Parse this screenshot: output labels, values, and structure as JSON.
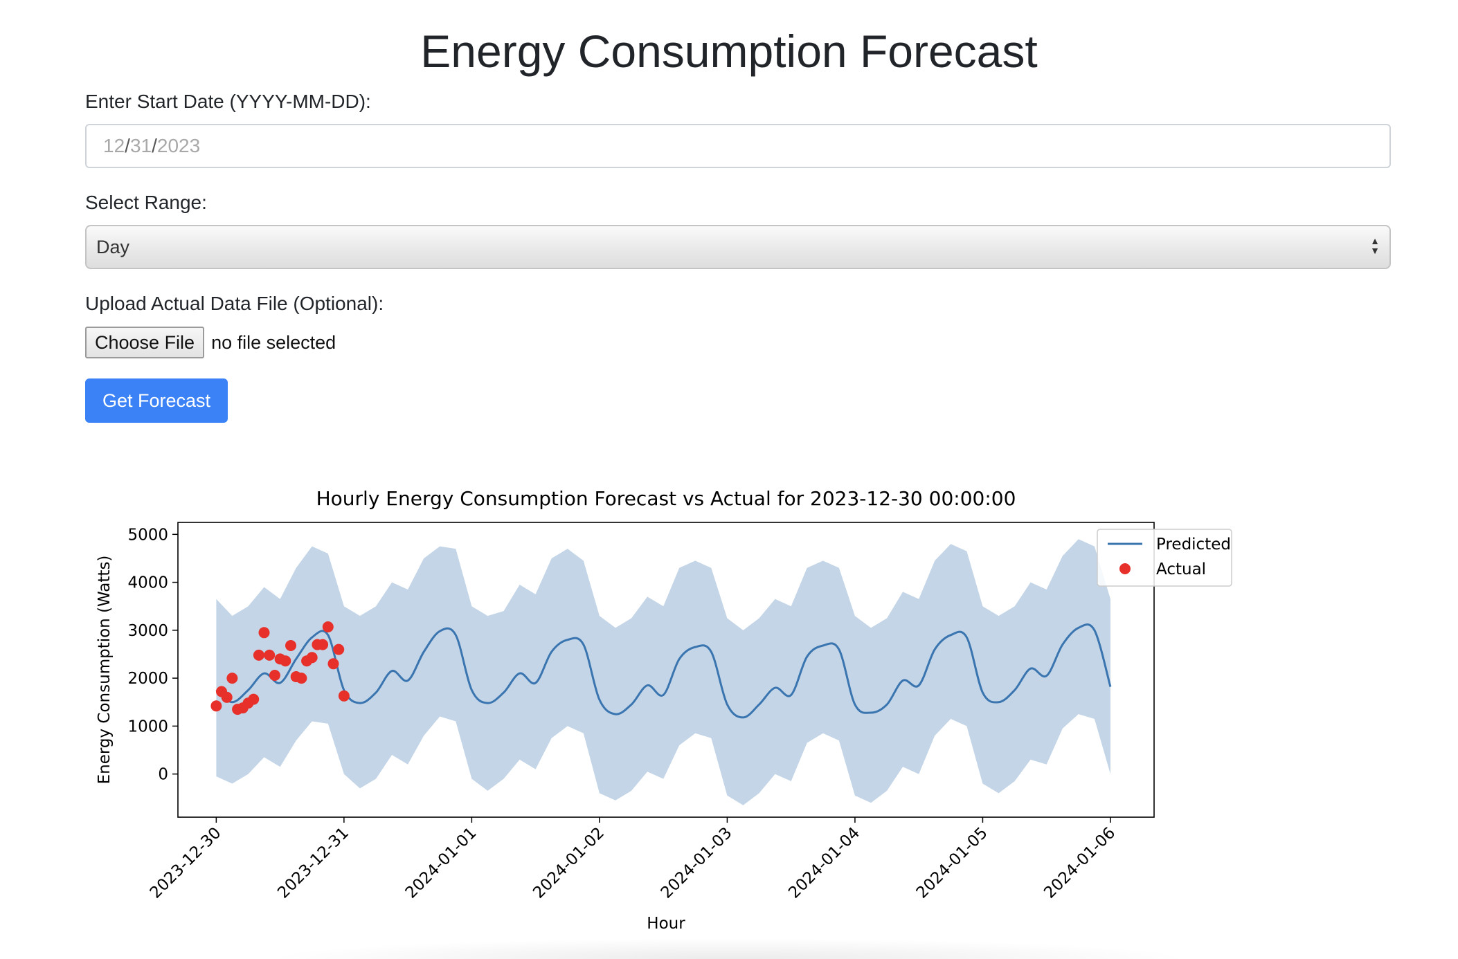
{
  "page": {
    "title": "Energy Consumption Forecast"
  },
  "form": {
    "start_date": {
      "label": "Enter Start Date (YYYY-MM-DD):",
      "month": "12",
      "day": "31",
      "year": "2023",
      "separator": "/"
    },
    "range": {
      "label": "Select Range:",
      "value": "Day"
    },
    "upload": {
      "label": "Upload Actual Data File (Optional):",
      "button_label": "Choose File",
      "status": "no file selected"
    },
    "submit_label": "Get Forecast",
    "colors": {
      "primary": "#3b82f6"
    }
  },
  "chart_data": {
    "type": "line",
    "title": "Hourly Energy Consumption Forecast vs Actual for 2023-12-30 00:00:00",
    "xlabel": "Hour",
    "ylabel": "Energy Consumption (Watts)",
    "ylim": [
      -900,
      5250
    ],
    "yticks": [
      0,
      1000,
      2000,
      3000,
      4000,
      5000
    ],
    "xlim": [
      "2023-12-29 16:48",
      "2024-01-06 08:12"
    ],
    "xticks": [
      "2023-12-30",
      "2023-12-31",
      "2024-01-01",
      "2024-01-02",
      "2024-01-03",
      "2024-01-04",
      "2024-01-05",
      "2024-01-06"
    ],
    "grid": false,
    "legend_position": "top-right",
    "colors": {
      "predicted": "#3a75b0",
      "band": "#c3d5e7",
      "actual": "#e8302a"
    },
    "series": [
      {
        "name": "Predicted",
        "kind": "line",
        "x": [
          "2023-12-30 00:00",
          "2023-12-30 03:00",
          "2023-12-30 06:00",
          "2023-12-30 09:00",
          "2023-12-30 12:00",
          "2023-12-30 15:00",
          "2023-12-30 18:00",
          "2023-12-30 21:00",
          "2023-12-31 00:00",
          "2023-12-31 03:00",
          "2023-12-31 06:00",
          "2023-12-31 09:00",
          "2023-12-31 12:00",
          "2023-12-31 15:00",
          "2023-12-31 18:00",
          "2023-12-31 21:00",
          "2024-01-01 00:00",
          "2024-01-01 03:00",
          "2024-01-01 06:00",
          "2024-01-01 09:00",
          "2024-01-01 12:00",
          "2024-01-01 15:00",
          "2024-01-01 18:00",
          "2024-01-01 21:00",
          "2024-01-02 00:00",
          "2024-01-02 03:00",
          "2024-01-02 06:00",
          "2024-01-02 09:00",
          "2024-01-02 12:00",
          "2024-01-02 15:00",
          "2024-01-02 18:00",
          "2024-01-02 21:00",
          "2024-01-03 00:00",
          "2024-01-03 03:00",
          "2024-01-03 06:00",
          "2024-01-03 09:00",
          "2024-01-03 12:00",
          "2024-01-03 15:00",
          "2024-01-03 18:00",
          "2024-01-03 21:00",
          "2024-01-04 00:00",
          "2024-01-04 03:00",
          "2024-01-04 06:00",
          "2024-01-04 09:00",
          "2024-01-04 12:00",
          "2024-01-04 15:00",
          "2024-01-04 18:00",
          "2024-01-04 21:00",
          "2024-01-05 00:00",
          "2024-01-05 03:00",
          "2024-01-05 06:00",
          "2024-01-05 09:00",
          "2024-01-05 12:00",
          "2024-01-05 15:00",
          "2024-01-05 18:00",
          "2024-01-05 21:00",
          "2024-01-06 00:00"
        ],
        "y": [
          1750,
          1500,
          1750,
          2100,
          1900,
          2400,
          2850,
          2900,
          1750,
          1480,
          1700,
          2150,
          1950,
          2550,
          2980,
          2900,
          1750,
          1480,
          1700,
          2100,
          1900,
          2550,
          2800,
          2700,
          1550,
          1250,
          1450,
          1850,
          1650,
          2400,
          2650,
          2550,
          1450,
          1180,
          1450,
          1800,
          1650,
          2450,
          2680,
          2600,
          1450,
          1280,
          1450,
          1950,
          1850,
          2600,
          2900,
          2850,
          1700,
          1500,
          1750,
          2200,
          2050,
          2700,
          3050,
          3000,
          1820
        ]
      },
      {
        "name": "",
        "kind": "band",
        "x": [
          "2023-12-30 00:00",
          "2023-12-30 03:00",
          "2023-12-30 06:00",
          "2023-12-30 09:00",
          "2023-12-30 12:00",
          "2023-12-30 15:00",
          "2023-12-30 18:00",
          "2023-12-30 21:00",
          "2023-12-31 00:00",
          "2023-12-31 03:00",
          "2023-12-31 06:00",
          "2023-12-31 09:00",
          "2023-12-31 12:00",
          "2023-12-31 15:00",
          "2023-12-31 18:00",
          "2023-12-31 21:00",
          "2024-01-01 00:00",
          "2024-01-01 03:00",
          "2024-01-01 06:00",
          "2024-01-01 09:00",
          "2024-01-01 12:00",
          "2024-01-01 15:00",
          "2024-01-01 18:00",
          "2024-01-01 21:00",
          "2024-01-02 00:00",
          "2024-01-02 03:00",
          "2024-01-02 06:00",
          "2024-01-02 09:00",
          "2024-01-02 12:00",
          "2024-01-02 15:00",
          "2024-01-02 18:00",
          "2024-01-02 21:00",
          "2024-01-03 00:00",
          "2024-01-03 03:00",
          "2024-01-03 06:00",
          "2024-01-03 09:00",
          "2024-01-03 12:00",
          "2024-01-03 15:00",
          "2024-01-03 18:00",
          "2024-01-03 21:00",
          "2024-01-04 00:00",
          "2024-01-04 03:00",
          "2024-01-04 06:00",
          "2024-01-04 09:00",
          "2024-01-04 12:00",
          "2024-01-04 15:00",
          "2024-01-04 18:00",
          "2024-01-04 21:00",
          "2024-01-05 00:00",
          "2024-01-05 03:00",
          "2024-01-05 06:00",
          "2024-01-05 09:00",
          "2024-01-05 12:00",
          "2024-01-05 15:00",
          "2024-01-05 18:00",
          "2024-01-05 21:00",
          "2024-01-06 00:00"
        ],
        "upper": [
          3650,
          3300,
          3500,
          3900,
          3650,
          4300,
          4750,
          4600,
          3500,
          3300,
          3500,
          4000,
          3850,
          4500,
          4750,
          4700,
          3500,
          3300,
          3400,
          3950,
          3750,
          4500,
          4700,
          4450,
          3300,
          3050,
          3250,
          3700,
          3500,
          4300,
          4450,
          4300,
          3250,
          3000,
          3250,
          3650,
          3500,
          4300,
          4450,
          4300,
          3300,
          3050,
          3250,
          3800,
          3650,
          4450,
          4800,
          4650,
          3500,
          3300,
          3500,
          4000,
          3850,
          4550,
          4900,
          4750,
          3650
        ],
        "lower": [
          -50,
          -200,
          0,
          350,
          150,
          700,
          1100,
          1050,
          0,
          -300,
          -100,
          400,
          200,
          800,
          1200,
          1100,
          -100,
          -350,
          -100,
          300,
          100,
          750,
          1000,
          850,
          -400,
          -550,
          -350,
          50,
          -100,
          600,
          850,
          750,
          -450,
          -650,
          -400,
          0,
          -150,
          650,
          850,
          700,
          -450,
          -600,
          -350,
          150,
          0,
          800,
          1150,
          1000,
          -200,
          -400,
          -150,
          300,
          200,
          950,
          1250,
          1150,
          0
        ]
      },
      {
        "name": "Actual",
        "kind": "scatter",
        "x": [
          "2023-12-30 00:00",
          "2023-12-30 01:00",
          "2023-12-30 02:00",
          "2023-12-30 03:00",
          "2023-12-30 04:00",
          "2023-12-30 05:00",
          "2023-12-30 06:00",
          "2023-12-30 07:00",
          "2023-12-30 08:00",
          "2023-12-30 09:00",
          "2023-12-30 10:00",
          "2023-12-30 11:00",
          "2023-12-30 12:00",
          "2023-12-30 13:00",
          "2023-12-30 14:00",
          "2023-12-30 15:00",
          "2023-12-30 16:00",
          "2023-12-30 17:00",
          "2023-12-30 18:00",
          "2023-12-30 19:00",
          "2023-12-30 20:00",
          "2023-12-30 21:00",
          "2023-12-30 22:00",
          "2023-12-30 23:00",
          "2023-12-31 00:00"
        ],
        "y": [
          1420,
          1720,
          1600,
          2000,
          1350,
          1380,
          1480,
          1560,
          2480,
          2950,
          2480,
          2060,
          2400,
          2360,
          2680,
          2030,
          2000,
          2360,
          2430,
          2700,
          2700,
          3070,
          2300,
          2600,
          1630
        ]
      }
    ]
  }
}
